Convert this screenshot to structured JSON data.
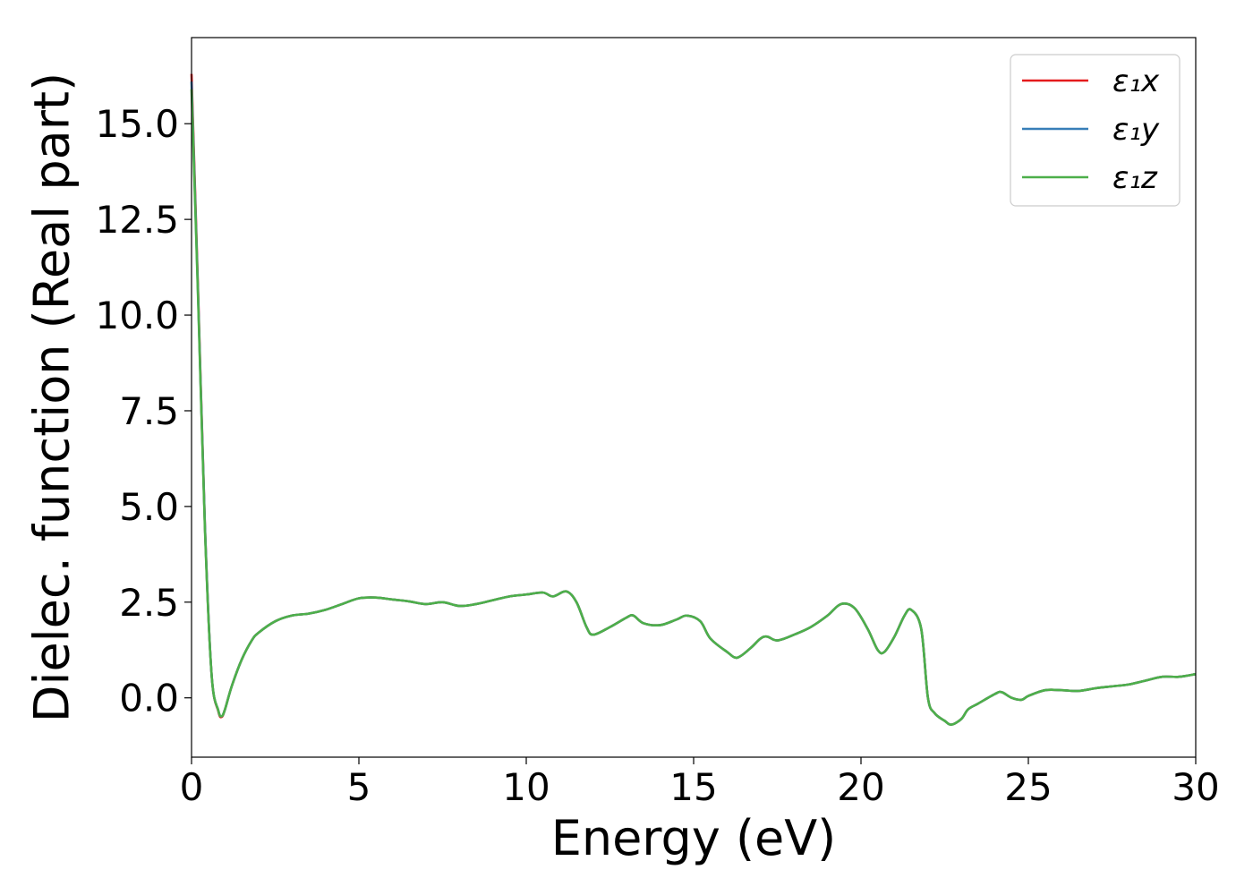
{
  "chart_data": {
    "type": "line",
    "title": "",
    "xlabel": "Energy (eV)",
    "ylabel": "Dielec. function (Real part)",
    "xlim": [
      0,
      30
    ],
    "ylim": [
      -1.55,
      17.25
    ],
    "xticks": [
      0,
      5,
      10,
      15,
      20,
      25,
      30
    ],
    "xtick_labels": [
      "0",
      "5",
      "10",
      "15",
      "20",
      "25",
      "30"
    ],
    "yticks": [
      0,
      2.5,
      5,
      7.5,
      10,
      12.5,
      15
    ],
    "ytick_labels": [
      "0.0",
      "2.5",
      "5.0",
      "7.5",
      "10.0",
      "12.5",
      "15.0"
    ],
    "grid": false,
    "legend_position": "top-right",
    "x": [
      0,
      0.2,
      0.4,
      0.6,
      0.8,
      0.9,
      1.0,
      1.2,
      1.5,
      1.8,
      2.0,
      2.5,
      3.0,
      3.5,
      4.0,
      4.5,
      5.0,
      5.5,
      6.0,
      6.5,
      7.0,
      7.5,
      8.0,
      8.5,
      9.0,
      9.5,
      10.0,
      10.5,
      10.8,
      11.2,
      11.5,
      11.8,
      12.0,
      12.5,
      13.0,
      13.2,
      13.5,
      14.0,
      14.5,
      14.8,
      15.2,
      15.5,
      16.0,
      16.3,
      16.7,
      17.0,
      17.2,
      17.5,
      18.0,
      18.5,
      19.0,
      19.4,
      19.8,
      20.2,
      20.5,
      20.7,
      21.0,
      21.3,
      21.5,
      21.8,
      22.0,
      22.2,
      22.5,
      22.7,
      23.0,
      23.2,
      23.5,
      24.0,
      24.2,
      24.5,
      24.8,
      25.0,
      25.5,
      26.0,
      26.5,
      27.0,
      27.5,
      28.0,
      28.5,
      29.0,
      29.5,
      30.0
    ],
    "series": [
      {
        "name": "ε₁x",
        "color": "#e41a1c",
        "values": [
          16.3,
          10.5,
          4.5,
          0.6,
          -0.35,
          -0.5,
          -0.3,
          0.3,
          1.0,
          1.5,
          1.7,
          2.0,
          2.15,
          2.2,
          2.3,
          2.45,
          2.6,
          2.62,
          2.57,
          2.52,
          2.45,
          2.5,
          2.4,
          2.45,
          2.55,
          2.65,
          2.7,
          2.75,
          2.65,
          2.78,
          2.5,
          1.85,
          1.65,
          1.85,
          2.1,
          2.15,
          1.95,
          1.9,
          2.05,
          2.15,
          2.0,
          1.55,
          1.2,
          1.05,
          1.3,
          1.55,
          1.6,
          1.5,
          1.65,
          1.85,
          2.15,
          2.45,
          2.35,
          1.8,
          1.25,
          1.2,
          1.6,
          2.15,
          2.3,
          1.8,
          0.0,
          -0.4,
          -0.6,
          -0.7,
          -0.55,
          -0.3,
          -0.15,
          0.1,
          0.15,
          0.0,
          -0.05,
          0.05,
          0.2,
          0.2,
          0.18,
          0.25,
          0.3,
          0.35,
          0.45,
          0.55,
          0.55,
          0.62
        ]
      },
      {
        "name": "ε₁y",
        "color": "#377eb8",
        "values": [
          16.1,
          10.4,
          4.5,
          0.6,
          -0.33,
          -0.48,
          -0.3,
          0.3,
          1.0,
          1.5,
          1.7,
          2.0,
          2.15,
          2.2,
          2.3,
          2.45,
          2.6,
          2.62,
          2.57,
          2.52,
          2.45,
          2.5,
          2.4,
          2.45,
          2.55,
          2.65,
          2.7,
          2.75,
          2.65,
          2.78,
          2.5,
          1.85,
          1.65,
          1.85,
          2.1,
          2.15,
          1.95,
          1.9,
          2.05,
          2.15,
          2.0,
          1.55,
          1.2,
          1.05,
          1.3,
          1.55,
          1.6,
          1.5,
          1.65,
          1.85,
          2.15,
          2.45,
          2.35,
          1.8,
          1.25,
          1.2,
          1.6,
          2.15,
          2.3,
          1.8,
          0.0,
          -0.4,
          -0.6,
          -0.7,
          -0.55,
          -0.3,
          -0.15,
          0.1,
          0.15,
          0.0,
          -0.05,
          0.05,
          0.2,
          0.2,
          0.18,
          0.25,
          0.3,
          0.35,
          0.45,
          0.55,
          0.55,
          0.62
        ]
      },
      {
        "name": "ε₁z",
        "color": "#4daf4a",
        "values": [
          15.9,
          10.3,
          4.4,
          0.6,
          -0.33,
          -0.48,
          -0.3,
          0.3,
          1.0,
          1.5,
          1.7,
          2.0,
          2.15,
          2.2,
          2.3,
          2.45,
          2.6,
          2.62,
          2.57,
          2.52,
          2.45,
          2.5,
          2.4,
          2.45,
          2.55,
          2.65,
          2.7,
          2.75,
          2.65,
          2.78,
          2.5,
          1.85,
          1.65,
          1.85,
          2.1,
          2.15,
          1.95,
          1.9,
          2.05,
          2.15,
          2.0,
          1.55,
          1.2,
          1.05,
          1.3,
          1.55,
          1.6,
          1.5,
          1.65,
          1.85,
          2.15,
          2.45,
          2.35,
          1.8,
          1.25,
          1.2,
          1.6,
          2.15,
          2.3,
          1.8,
          0.0,
          -0.4,
          -0.6,
          -0.7,
          -0.55,
          -0.3,
          -0.15,
          0.1,
          0.15,
          0.0,
          -0.05,
          0.05,
          0.2,
          0.2,
          0.18,
          0.25,
          0.3,
          0.35,
          0.45,
          0.55,
          0.55,
          0.62
        ]
      }
    ]
  }
}
